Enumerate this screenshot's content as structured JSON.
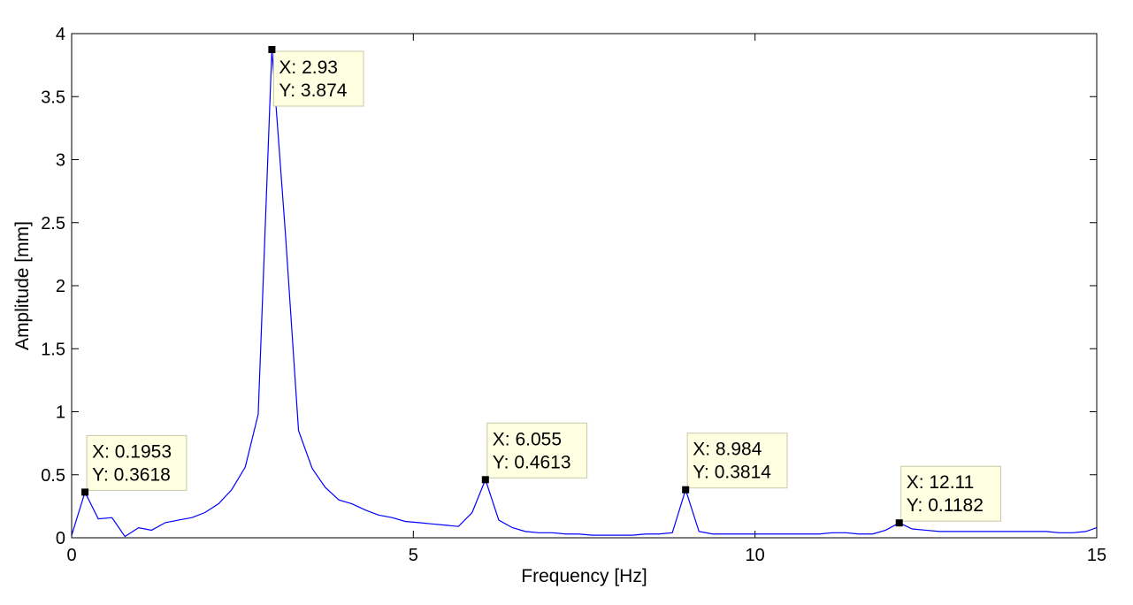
{
  "chart_data": {
    "type": "line",
    "title": "",
    "xlabel": "Frequency [Hz]",
    "ylabel": "Amplitude [mm]",
    "xlim": [
      0,
      15
    ],
    "ylim": [
      0,
      4
    ],
    "xticks": [
      0,
      5,
      10,
      15
    ],
    "yticks": [
      0,
      0.5,
      1,
      1.5,
      2,
      2.5,
      3,
      3.5,
      4
    ],
    "xtick_labels": [
      "0",
      "5",
      "10",
      "15"
    ],
    "ytick_labels": [
      "0",
      "0.5",
      "1",
      "1.5",
      "2",
      "2.5",
      "3",
      "3.5",
      "4"
    ],
    "grid": false,
    "line_color": "#0000ff",
    "series": [
      {
        "x": [
          0,
          0.1953,
          0.39,
          0.59,
          0.78,
          0.98,
          1.17,
          1.37,
          1.56,
          1.76,
          1.95,
          2.15,
          2.34,
          2.54,
          2.73,
          2.93,
          3.13,
          3.32,
          3.52,
          3.71,
          3.91,
          4.1,
          4.3,
          4.49,
          4.69,
          4.88,
          5.08,
          5.27,
          5.47,
          5.66,
          5.86,
          6.055,
          6.25,
          6.45,
          6.64,
          6.84,
          7.03,
          7.23,
          7.42,
          7.62,
          7.81,
          8.01,
          8.2,
          8.4,
          8.59,
          8.79,
          8.984,
          9.18,
          9.38,
          9.57,
          9.77,
          9.96,
          10.16,
          10.35,
          10.55,
          10.74,
          10.94,
          11.13,
          11.33,
          11.52,
          11.72,
          11.91,
          12.11,
          12.3,
          12.5,
          12.7,
          12.89,
          13.09,
          13.28,
          13.48,
          13.67,
          13.87,
          14.06,
          14.26,
          14.45,
          14.65,
          14.84,
          15
        ],
        "y": [
          0.02,
          0.3618,
          0.15,
          0.16,
          0.01,
          0.08,
          0.06,
          0.12,
          0.14,
          0.16,
          0.2,
          0.27,
          0.38,
          0.56,
          0.98,
          3.874,
          2.4,
          0.85,
          0.55,
          0.4,
          0.3,
          0.27,
          0.22,
          0.18,
          0.16,
          0.13,
          0.12,
          0.11,
          0.1,
          0.09,
          0.2,
          0.4613,
          0.14,
          0.08,
          0.05,
          0.04,
          0.04,
          0.03,
          0.03,
          0.02,
          0.02,
          0.02,
          0.02,
          0.03,
          0.03,
          0.04,
          0.3814,
          0.05,
          0.03,
          0.03,
          0.03,
          0.03,
          0.03,
          0.03,
          0.03,
          0.03,
          0.03,
          0.04,
          0.04,
          0.03,
          0.03,
          0.06,
          0.1182,
          0.07,
          0.06,
          0.05,
          0.05,
          0.05,
          0.05,
          0.05,
          0.05,
          0.05,
          0.05,
          0.05,
          0.04,
          0.04,
          0.05,
          0.08
        ]
      }
    ],
    "datatips": [
      {
        "x": 0.1953,
        "y": 0.3618,
        "xlabel": "X: 0.1953",
        "ylabel": "Y: 0.3618",
        "placement": "above-right"
      },
      {
        "x": 2.93,
        "y": 3.874,
        "xlabel": "X: 2.93",
        "ylabel": "Y: 3.874",
        "placement": "below-right"
      },
      {
        "x": 6.055,
        "y": 0.4613,
        "xlabel": "X: 6.055",
        "ylabel": "Y: 0.4613",
        "placement": "above-right"
      },
      {
        "x": 8.984,
        "y": 0.3814,
        "xlabel": "X: 8.984",
        "ylabel": "Y: 0.3814",
        "placement": "above-right"
      },
      {
        "x": 12.11,
        "y": 0.1182,
        "xlabel": "X: 12.11",
        "ylabel": "Y: 0.1182",
        "placement": "above-right"
      }
    ],
    "datatip_fill": "#ffffe1",
    "datatip_border": "#c8c8a8"
  }
}
